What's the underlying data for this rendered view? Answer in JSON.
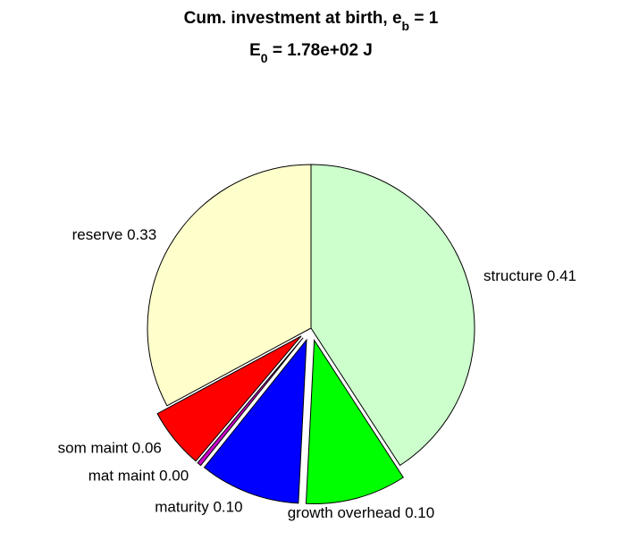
{
  "chart_data": {
    "type": "pie",
    "title_lines": [
      {
        "main": "Cum. investment at birth, e",
        "sub": "b",
        "rest": " = 1"
      },
      {
        "main": "E",
        "sub": "0",
        "rest": " = 1.78e+02 J"
      }
    ],
    "categories": [
      "structure",
      "growth overhead",
      "maturity",
      "mat maint",
      "som maint",
      "reserve"
    ],
    "values": [
      0.41,
      0.1,
      0.1,
      0.004,
      0.06,
      0.33
    ],
    "value_labels": [
      "0.41",
      "0.10",
      "0.10",
      "0.00",
      "0.06",
      "0.33"
    ],
    "colors": [
      "#ccffcc",
      "#00ff00",
      "#0000ff",
      "#cc00cc",
      "#ff0000",
      "#ffffcc"
    ],
    "explode": [
      0,
      1,
      1,
      1,
      1,
      0
    ]
  }
}
